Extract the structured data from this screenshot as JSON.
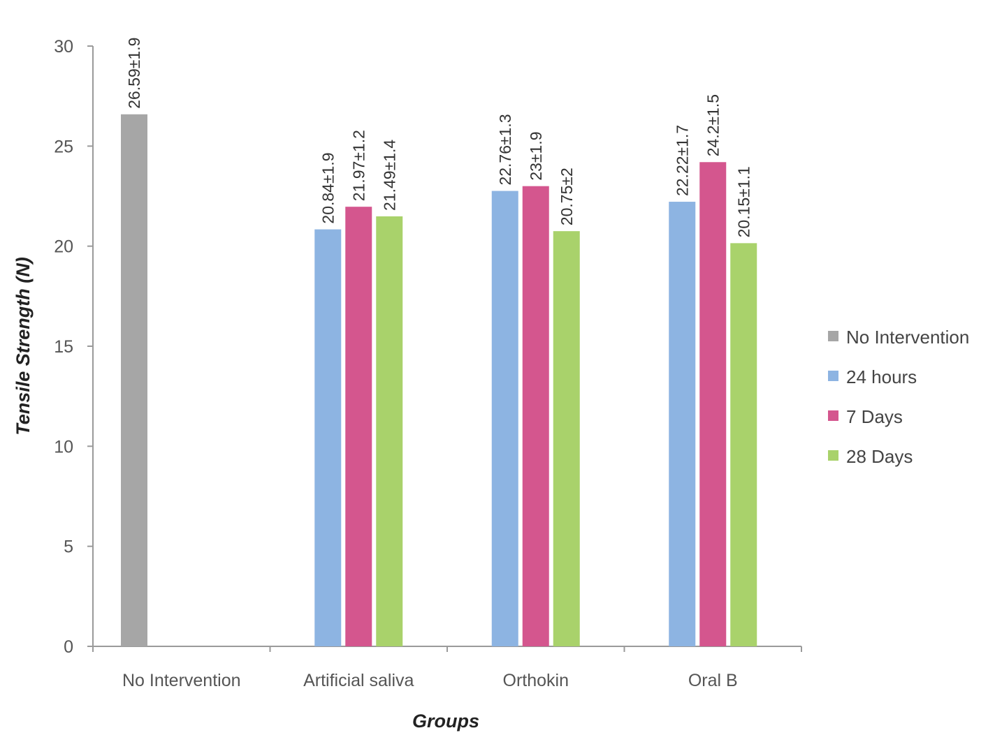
{
  "chart_data": {
    "type": "bar",
    "title": "",
    "xlabel": "Groups",
    "ylabel": "Tensile Strength (N)",
    "ylim": [
      0,
      30
    ],
    "yticks": [
      0,
      5,
      10,
      15,
      20,
      25,
      30
    ],
    "categories": [
      "No Intervention",
      "Artificial saliva",
      "Orthokin",
      "Oral B"
    ],
    "series": [
      {
        "name": "No Intervention",
        "color": "#a6a6a6",
        "values": [
          26.59,
          null,
          null,
          null
        ],
        "labels": [
          "26.59±1.9",
          "",
          "",
          ""
        ]
      },
      {
        "name": "24 hours",
        "color": "#8db4e2",
        "values": [
          null,
          20.84,
          22.76,
          22.22
        ],
        "labels": [
          "",
          "20.84±1.9",
          "22.76±1.3",
          "22.22±1.7"
        ]
      },
      {
        "name": "7 Days",
        "color": "#d4568e",
        "values": [
          null,
          21.97,
          23,
          24.2
        ],
        "labels": [
          "",
          "21.97±1.2",
          "23±1.9",
          "24.2±1.5"
        ]
      },
      {
        "name": "28 Days",
        "color": "#a9d26b",
        "values": [
          null,
          21.49,
          20.75,
          20.15
        ],
        "labels": [
          "",
          "21.49±1.4",
          "20.75±2",
          "20.15±1.1"
        ]
      }
    ],
    "grid": false,
    "legend_position": "right"
  }
}
